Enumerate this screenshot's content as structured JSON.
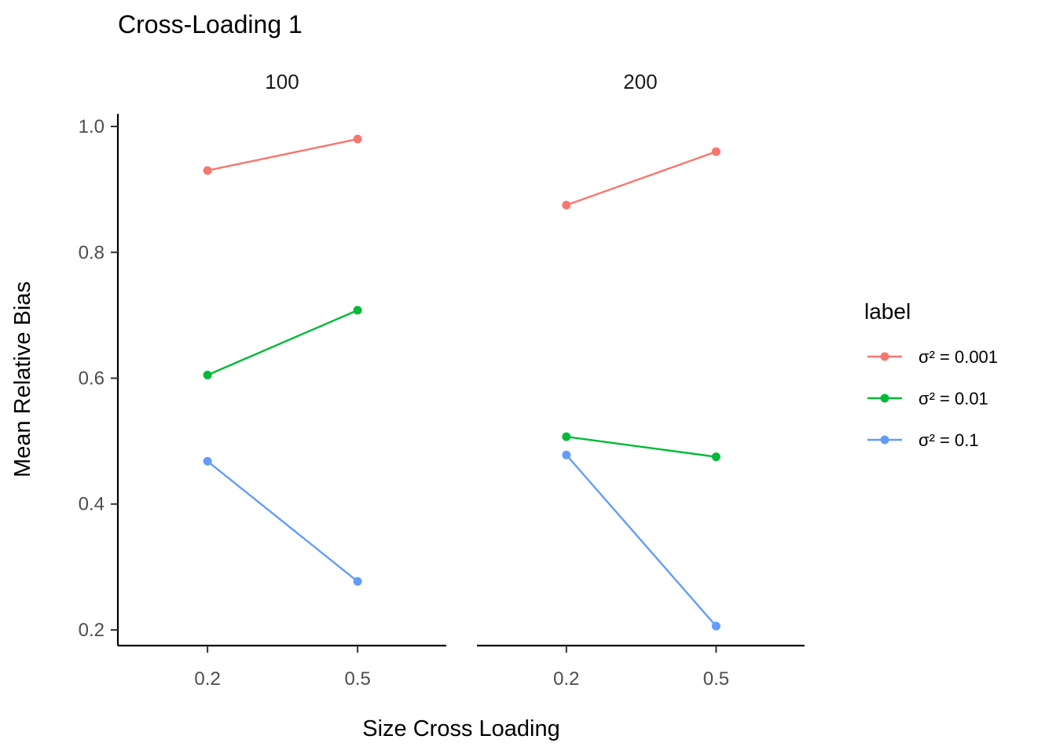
{
  "chart_data": {
    "type": "line",
    "title": "Cross-Loading 1",
    "xlabel": "Size Cross Loading",
    "ylabel": "Mean Relative Bias",
    "x_categories": [
      "0.2",
      "0.5"
    ],
    "ylim": [
      0.175,
      1.02
    ],
    "y_ticks": [
      0.2,
      0.4,
      0.6,
      0.8,
      1.0
    ],
    "y_tick_labels": [
      "0.2",
      "0.4",
      "0.6",
      "0.8",
      "1.0"
    ],
    "grid": false,
    "legend": {
      "title": "label",
      "position": "right"
    },
    "series": [
      {
        "name": "σ² = 0.001",
        "color": "#F8766D"
      },
      {
        "name": "σ² = 0.01",
        "color": "#00BA38"
      },
      {
        "name": "σ² = 0.1",
        "color": "#619CFF"
      }
    ],
    "panels": [
      {
        "label": "100",
        "values": [
          [
            0.93,
            0.98
          ],
          [
            0.605,
            0.708
          ],
          [
            0.468,
            0.277
          ]
        ]
      },
      {
        "label": "200",
        "values": [
          [
            0.875,
            0.96
          ],
          [
            0.507,
            0.475
          ],
          [
            0.478,
            0.206
          ]
        ]
      }
    ]
  }
}
